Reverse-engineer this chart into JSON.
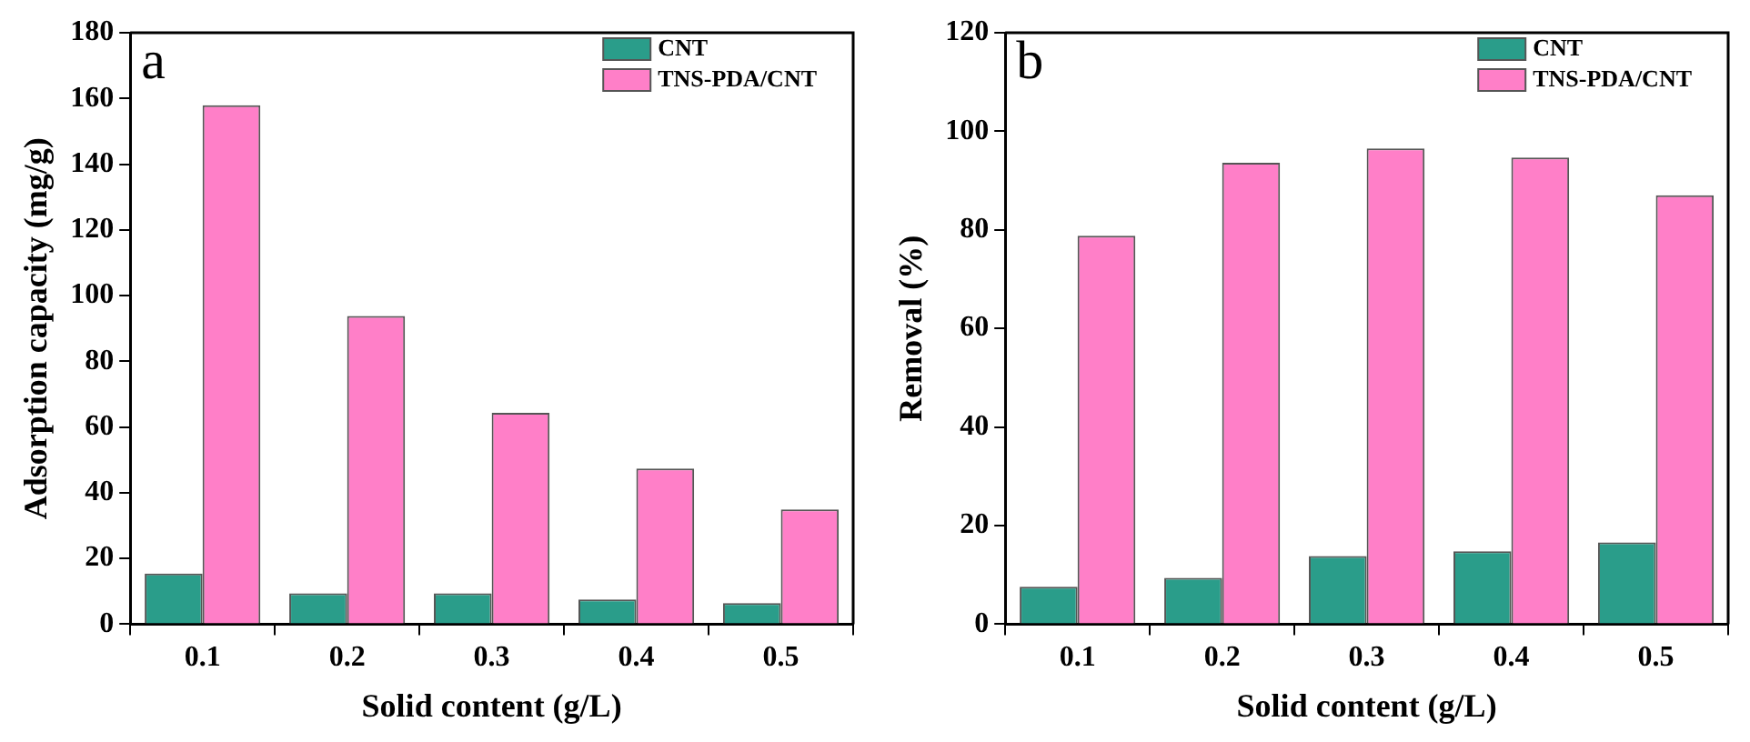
{
  "chart_data": [
    {
      "type": "bar",
      "categories": [
        "0.1",
        "0.2",
        "0.3",
        "0.4",
        "0.5"
      ],
      "xlabel": "Solid content (g/L)",
      "ylabel": "Adsorption capacity (mg/g)",
      "ylim": [
        0,
        180
      ],
      "yticks": [
        0,
        20,
        40,
        60,
        80,
        100,
        120,
        140,
        160,
        180
      ],
      "legend": "top right",
      "annotations": [
        "a"
      ],
      "series": [
        {
          "name": "CNT",
          "color": "#2a9d8a",
          "values": [
            15.4,
            9.4,
            9.4,
            7.5,
            6.4
          ]
        },
        {
          "name": "TNS-PDA/CNT",
          "color": "#ff7fc8",
          "values": [
            157.9,
            93.8,
            64.3,
            47.4,
            34.9
          ]
        }
      ]
    },
    {
      "type": "bar",
      "categories": [
        "0.1",
        "0.2",
        "0.3",
        "0.4",
        "0.5"
      ],
      "xlabel": "Solid content (g/L)",
      "ylabel": "Removal (%)",
      "ylim": [
        0,
        120
      ],
      "yticks": [
        0,
        20,
        40,
        60,
        80,
        100,
        120
      ],
      "legend": "top right",
      "annotations": [
        "b"
      ],
      "series": [
        {
          "name": "CNT",
          "color": "#2a9d8a",
          "values": [
            7.6,
            9.4,
            13.8,
            14.8,
            16.6
          ]
        },
        {
          "name": "TNS-PDA/CNT",
          "color": "#ff7fc8",
          "values": [
            78.8,
            93.6,
            96.5,
            94.7,
            87.0
          ]
        }
      ]
    }
  ]
}
